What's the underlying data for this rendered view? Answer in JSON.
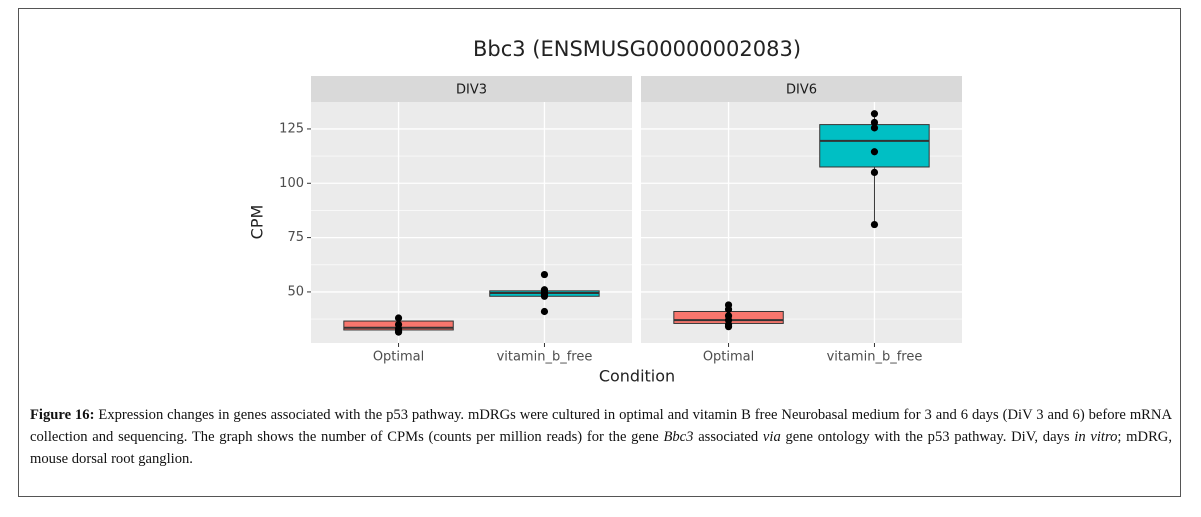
{
  "chart_data": {
    "type": "box",
    "title": "Bbc3 (ENSMUSG00000002083)",
    "x_label": "Condition",
    "y_label": "CPM",
    "ylim": [
      26.5,
      137.4
    ],
    "yticks": [
      50,
      75,
      100,
      125
    ],
    "grid": true,
    "minor_grid": true,
    "colors": [
      "#f8766d",
      "#00bfc4"
    ],
    "facets": [
      {
        "name": "DIV3",
        "categories": [
          "Optimal",
          "vitamin_b_free"
        ],
        "boxes": [
          {
            "whisker_low": 31.5,
            "q1": 32.5,
            "median": 33.5,
            "q3": 36.6,
            "whisker_high": 38,
            "points": [
              38,
              35,
              33,
              32,
              31.5
            ]
          },
          {
            "whisker_low": 48,
            "q1": 48,
            "median": 49.5,
            "q3": 50.5,
            "whisker_high": 51,
            "points": [
              58,
              51,
              50,
              49,
              48,
              41
            ]
          }
        ]
      },
      {
        "name": "DIV6",
        "categories": [
          "Optimal",
          "vitamin_b_free"
        ],
        "boxes": [
          {
            "whisker_low": 34,
            "q1": 35.5,
            "median": 37,
            "q3": 41,
            "whisker_high": 44,
            "points": [
              44,
              42,
              39,
              37,
              35,
              34
            ]
          },
          {
            "whisker_low": 81,
            "q1": 107.5,
            "median": 119.5,
            "q3": 127,
            "whisker_high": 132,
            "points": [
              132,
              128,
              125.5,
              114.5,
              105,
              81
            ]
          }
        ]
      }
    ]
  },
  "caption": [
    {
      "text": "Figure 16:",
      "style": "bold"
    },
    {
      "text": " Expression changes in genes associated with the p53 pathway. mDRGs were cultured in optimal and vitamin B free Neurobasal medium for 3 and 6 days (DiV 3 and 6) before mRNA collection and sequencing. The graph shows the number of CPMs (counts per million reads) for the gene ",
      "style": "normal"
    },
    {
      "text": "Bbc3",
      "style": "italic"
    },
    {
      "text": " associated ",
      "style": "normal"
    },
    {
      "text": "via",
      "style": "italic"
    },
    {
      "text": " gene ontology with the p53 pathway. DiV, days ",
      "style": "normal"
    },
    {
      "text": "in vitro",
      "style": "italic"
    },
    {
      "text": "; mDRG, mouse dorsal root ganglion.",
      "style": "normal"
    }
  ]
}
